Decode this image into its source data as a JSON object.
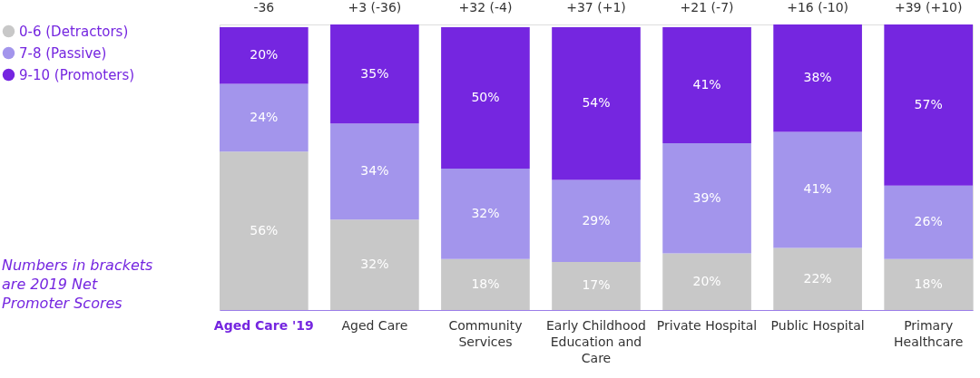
{
  "chart_data": {
    "type": "bar",
    "stacked": true,
    "legend": "left",
    "categories": [
      "Aged Care '19",
      "Aged Care",
      "Community Services",
      "Early Childhood Education and Care",
      "Private Hospital",
      "Public Hospital",
      "Primary Healthcare"
    ],
    "series": [
      {
        "name": "0-6 (Detractors)",
        "color": "#c8c8c8",
        "values": [
          56,
          32,
          18,
          17,
          20,
          22,
          18
        ],
        "value_labels": [
          "56%",
          "32%",
          "18%",
          "17%",
          "20%",
          "22%",
          "18%"
        ]
      },
      {
        "name": "7-8 (Passive)",
        "color": "#a395ec",
        "values": [
          24,
          34,
          32,
          29,
          39,
          41,
          26
        ],
        "value_labels": [
          "24%",
          "34%",
          "32%",
          "29%",
          "39%",
          "41%",
          "26%"
        ]
      },
      {
        "name": "9-10 (Promoters)",
        "color": "#7526e0",
        "values": [
          20,
          35,
          50,
          54,
          41,
          38,
          57
        ],
        "value_labels": [
          "20%",
          "35%",
          "50%",
          "54%",
          "41%",
          "38%",
          "57%"
        ]
      }
    ],
    "annotations": [
      "-36",
      "+3 (-36)",
      "+32 (-4)",
      "+37 (+1)",
      "+21 (-7)",
      "+16 (-10)",
      "+39 (+10)",
      "Numbers in brackets are 2019 Net Promoter Scores"
    ]
  }
}
